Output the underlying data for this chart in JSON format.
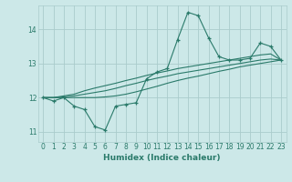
{
  "xlabel": "Humidex (Indice chaleur)",
  "background_color": "#cce8e8",
  "grid_color": "#aacccc",
  "line_color": "#2a7a6a",
  "xlim": [
    -0.5,
    23.5
  ],
  "ylim": [
    10.7,
    14.7
  ],
  "yticks": [
    11,
    12,
    13,
    14
  ],
  "xticks": [
    0,
    1,
    2,
    3,
    4,
    5,
    6,
    7,
    8,
    9,
    10,
    11,
    12,
    13,
    14,
    15,
    16,
    17,
    18,
    19,
    20,
    21,
    22,
    23
  ],
  "main_y": [
    12.0,
    11.9,
    12.0,
    11.75,
    11.65,
    11.15,
    11.05,
    11.75,
    11.8,
    11.85,
    12.55,
    12.75,
    12.85,
    13.7,
    14.5,
    14.4,
    13.75,
    13.2,
    13.1,
    13.1,
    13.15,
    13.6,
    13.5,
    13.1
  ],
  "upper_y": [
    12.0,
    12.0,
    12.05,
    12.1,
    12.2,
    12.28,
    12.35,
    12.42,
    12.5,
    12.57,
    12.65,
    12.72,
    12.78,
    12.85,
    12.9,
    12.95,
    13.0,
    13.05,
    13.1,
    13.15,
    13.2,
    13.25,
    13.28,
    13.1
  ],
  "mid_y": [
    12.0,
    12.0,
    12.02,
    12.05,
    12.1,
    12.15,
    12.2,
    12.27,
    12.35,
    12.42,
    12.5,
    12.57,
    12.63,
    12.7,
    12.75,
    12.8,
    12.85,
    12.9,
    12.95,
    13.0,
    13.05,
    13.1,
    13.13,
    13.1
  ],
  "lower_y": [
    12.0,
    12.0,
    12.0,
    12.0,
    12.0,
    12.0,
    12.02,
    12.05,
    12.1,
    12.17,
    12.25,
    12.33,
    12.42,
    12.5,
    12.57,
    12.63,
    12.7,
    12.77,
    12.83,
    12.9,
    12.95,
    13.0,
    13.05,
    13.1
  ]
}
